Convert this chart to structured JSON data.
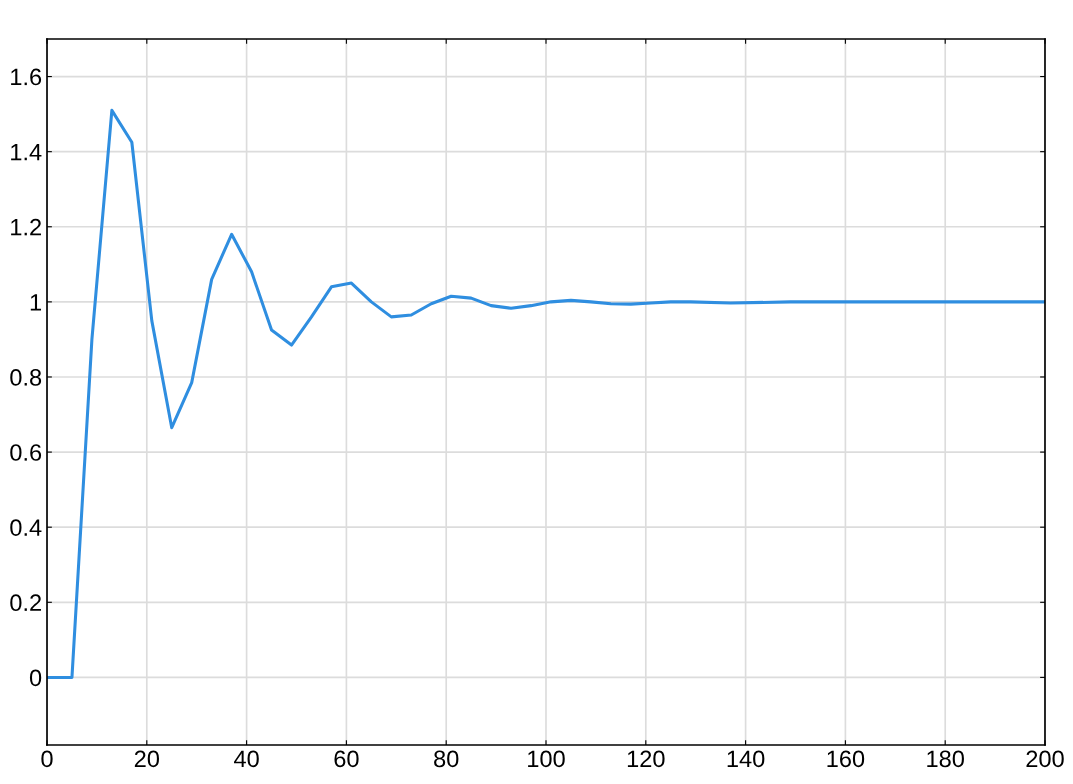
{
  "chart_data": {
    "type": "line",
    "x": [
      0,
      5,
      9,
      13,
      17,
      21,
      25,
      29,
      33,
      37,
      41,
      45,
      49,
      53,
      57,
      61,
      65,
      69,
      73,
      77,
      81,
      85,
      89,
      93,
      97,
      101,
      105,
      109,
      113,
      117,
      121,
      125,
      129,
      137,
      149,
      200
    ],
    "series": [
      {
        "color": "#2f8ee0",
        "values": [
          0,
          0,
          0.9,
          1.51,
          1.425,
          0.95,
          0.665,
          0.785,
          1.06,
          1.18,
          1.08,
          0.925,
          0.885,
          0.96,
          1.04,
          1.05,
          1.0,
          0.96,
          0.965,
          0.995,
          1.015,
          1.01,
          0.99,
          0.983,
          0.99,
          1.0,
          1.004,
          1.0,
          0.995,
          0.994,
          0.997,
          1.0,
          1.0,
          0.997,
          1.0,
          1.0
        ]
      }
    ],
    "xlim": [
      0,
      200
    ],
    "ylim": [
      -0.18,
      1.7
    ],
    "xticks": [
      0,
      20,
      40,
      60,
      80,
      100,
      120,
      140,
      160,
      180,
      200
    ],
    "yticks": [
      0,
      0.2,
      0.4,
      0.6,
      0.8,
      1,
      1.2,
      1.4,
      1.6
    ],
    "grid": true,
    "marker": "none",
    "line_style": "solid"
  }
}
